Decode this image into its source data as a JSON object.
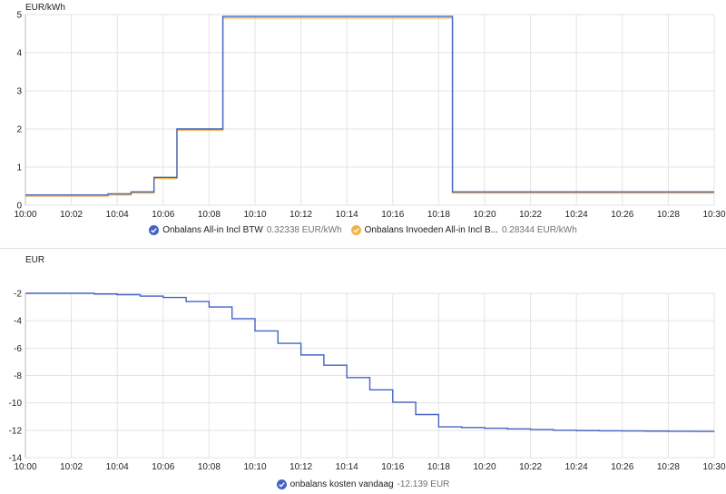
{
  "colors": {
    "blue": "#4464c4",
    "orange": "#f0b445",
    "grid": "#e3e3e3"
  },
  "icons": {
    "legend": "check-circle-icon"
  },
  "chart_data": [
    {
      "type": "line",
      "step": true,
      "ylabel": "EUR/kWh",
      "ylim": [
        0,
        5
      ],
      "yticks": [
        "0",
        "1",
        "2",
        "3",
        "4",
        "5"
      ],
      "xlim": [
        0,
        30
      ],
      "xticks": [
        "10:00",
        "10:02",
        "10:04",
        "10:06",
        "10:08",
        "10:10",
        "10:12",
        "10:14",
        "10:16",
        "10:18",
        "10:20",
        "10:22",
        "10:24",
        "10:26",
        "10:28",
        "10:30"
      ],
      "grid": true,
      "legend_position": "bottom-center",
      "series": [
        {
          "name": "Onbalans All-in Incl BTW",
          "value_text": "0.32338 EUR/kWh",
          "color": "#4464c4",
          "x": [
            0,
            3.6,
            4.6,
            5.6,
            6.6,
            8.6,
            18.6,
            30
          ],
          "y": [
            0.27,
            0.3,
            0.35,
            0.73,
            2.0,
            4.95,
            0.35,
            0.35
          ]
        },
        {
          "name": "Onbalans Invoeden All-in Incl B...",
          "value_text": "0.28344 EUR/kWh",
          "color": "#f0b445",
          "x": [
            0,
            3.6,
            4.6,
            5.6,
            6.6,
            8.6,
            18.6,
            30
          ],
          "y": [
            0.24,
            0.27,
            0.32,
            0.7,
            1.97,
            4.91,
            0.32,
            0.32
          ]
        }
      ]
    },
    {
      "type": "line",
      "step": true,
      "ylabel": "EUR",
      "ylim": [
        -14,
        -2
      ],
      "yticks": [
        "-2",
        "-4",
        "-6",
        "-8",
        "-10",
        "-12",
        "-14"
      ],
      "xlim": [
        0,
        30
      ],
      "xticks": [
        "10:00",
        "10:02",
        "10:04",
        "10:06",
        "10:08",
        "10:10",
        "10:12",
        "10:14",
        "10:16",
        "10:18",
        "10:20",
        "10:22",
        "10:24",
        "10:26",
        "10:28",
        "10:30"
      ],
      "grid": true,
      "legend_position": "bottom-center",
      "series": [
        {
          "name": "onbalans kosten vandaag",
          "value_text": "-12.139 EUR",
          "color": "#4464c4",
          "x": [
            0,
            2,
            3,
            4,
            5,
            6,
            7,
            8,
            9,
            10,
            11,
            12,
            13,
            14,
            15,
            16,
            17,
            18,
            19,
            20,
            21,
            22,
            23,
            24,
            25,
            26,
            27,
            28,
            29,
            30
          ],
          "y": [
            -2.0,
            -2.0,
            -2.05,
            -2.1,
            -2.2,
            -2.3,
            -2.6,
            -3.0,
            -3.85,
            -4.75,
            -5.65,
            -6.5,
            -7.25,
            -8.15,
            -9.05,
            -9.95,
            -10.85,
            -11.75,
            -11.8,
            -11.85,
            -11.9,
            -11.95,
            -12.0,
            -12.02,
            -12.04,
            -12.05,
            -12.06,
            -12.07,
            -12.08,
            -12.1
          ]
        }
      ]
    }
  ]
}
